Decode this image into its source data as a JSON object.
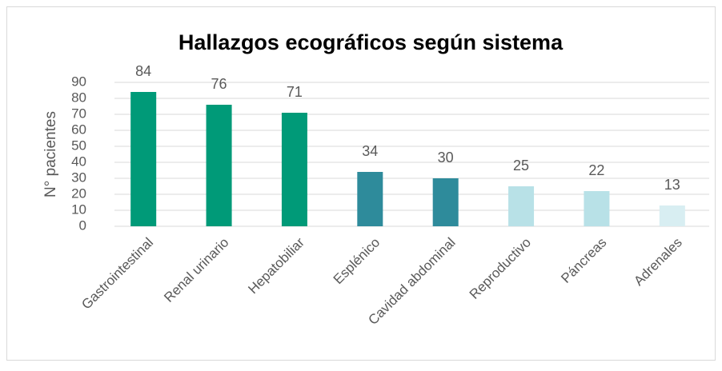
{
  "chart_data": {
    "type": "bar",
    "title": "Hallazgos ecográficos según sistema",
    "y_label": "N° pacientes",
    "categories": [
      "Gastrointestinal",
      "Renal urinario",
      "Hepatobiliar",
      "Esplénico",
      "Cavidad abdominal",
      "Reproductivo",
      "Páncreas",
      "Adrenales"
    ],
    "values": [
      84,
      76,
      71,
      34,
      30,
      25,
      22,
      13
    ],
    "colors": [
      "#009a78",
      "#009a78",
      "#009a78",
      "#2e8b9b",
      "#2e8b9b",
      "#b8e1e7",
      "#b8e1e7",
      "#d8eef2"
    ],
    "ylim": [
      0,
      90
    ],
    "yticks": [
      0,
      10,
      20,
      30,
      40,
      50,
      60,
      70,
      80,
      90
    ],
    "grid": true
  }
}
